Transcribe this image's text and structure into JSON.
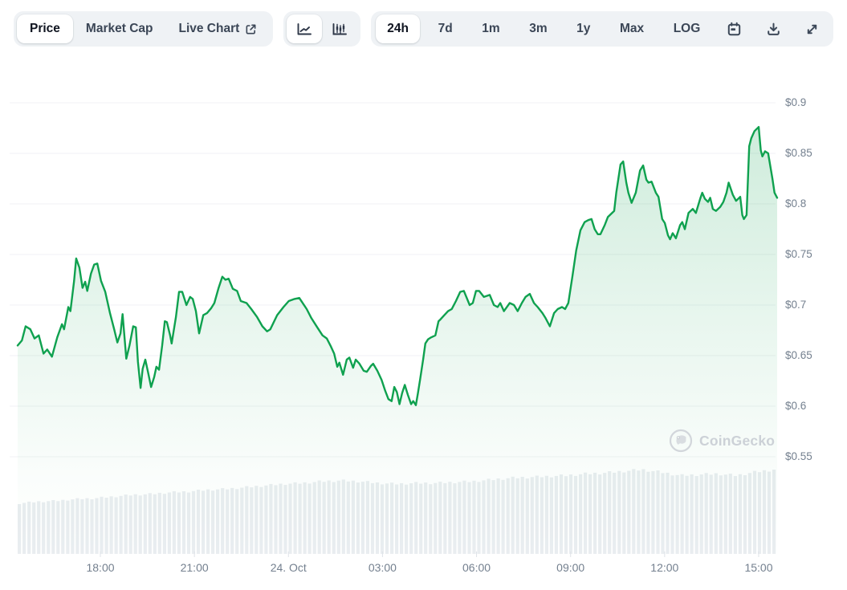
{
  "toolbar": {
    "view_tabs": [
      {
        "label": "Price",
        "active": true
      },
      {
        "label": "Market Cap",
        "active": false
      },
      {
        "label": "Live Chart",
        "active": false,
        "external_link": true
      }
    ],
    "chart_types": [
      {
        "name": "line-chart",
        "active": true
      },
      {
        "name": "candlestick-chart",
        "active": false
      }
    ],
    "ranges": [
      {
        "label": "24h",
        "active": true
      },
      {
        "label": "7d",
        "active": false
      },
      {
        "label": "1m",
        "active": false
      },
      {
        "label": "3m",
        "active": false
      },
      {
        "label": "1y",
        "active": false
      },
      {
        "label": "Max",
        "active": false
      },
      {
        "label": "LOG",
        "active": false
      }
    ],
    "icon_buttons": [
      {
        "name": "calendar-icon"
      },
      {
        "name": "download-icon"
      },
      {
        "name": "fullscreen-icon"
      }
    ]
  },
  "watermark": {
    "label": "CoinGecko"
  },
  "colors": {
    "line_green": "#0fa14f",
    "fill_green": "#0fa14f",
    "axis_text": "#74808f",
    "grid": "#f0f2f4",
    "volume_bar": "#e9edf0",
    "toolbar_bg": "#eff2f5"
  },
  "chart_data": {
    "type": "line",
    "title": "24h price chart (USD)",
    "x_axis": {
      "labels": [
        "18:00",
        "21:00",
        "24. Oct",
        "03:00",
        "06:00",
        "09:00",
        "12:00",
        "15:00"
      ],
      "tick_interval": "3h",
      "span_minutes": 1440
    },
    "y_axis": {
      "labels": [
        "$0.9",
        "$0.85",
        "$0.8",
        "$0.75",
        "$0.7",
        "$0.65",
        "$0.6",
        "$0.55"
      ],
      "min": 0.55,
      "max": 0.9,
      "grid_step": 0.05,
      "unit": "$"
    },
    "series": [
      {
        "name": "Price",
        "unit": "USD",
        "points": [
          [
            0,
            0.66
          ],
          [
            8,
            0.665
          ],
          [
            15,
            0.679
          ],
          [
            24,
            0.676
          ],
          [
            32,
            0.667
          ],
          [
            40,
            0.67
          ],
          [
            49,
            0.652
          ],
          [
            56,
            0.656
          ],
          [
            65,
            0.649
          ],
          [
            75,
            0.668
          ],
          [
            84,
            0.681
          ],
          [
            88,
            0.676
          ],
          [
            96,
            0.698
          ],
          [
            100,
            0.694
          ],
          [
            107,
            0.724
          ],
          [
            111,
            0.746
          ],
          [
            117,
            0.737
          ],
          [
            123,
            0.717
          ],
          [
            128,
            0.723
          ],
          [
            132,
            0.714
          ],
          [
            139,
            0.731
          ],
          [
            145,
            0.74
          ],
          [
            151,
            0.741
          ],
          [
            158,
            0.724
          ],
          [
            166,
            0.713
          ],
          [
            175,
            0.692
          ],
          [
            183,
            0.676
          ],
          [
            189,
            0.663
          ],
          [
            195,
            0.672
          ],
          [
            199,
            0.691
          ],
          [
            206,
            0.647
          ],
          [
            212,
            0.66
          ],
          [
            219,
            0.679
          ],
          [
            224,
            0.678
          ],
          [
            228,
            0.644
          ],
          [
            233,
            0.618
          ],
          [
            237,
            0.637
          ],
          [
            242,
            0.646
          ],
          [
            247,
            0.634
          ],
          [
            253,
            0.619
          ],
          [
            259,
            0.629
          ],
          [
            263,
            0.639
          ],
          [
            268,
            0.636
          ],
          [
            274,
            0.66
          ],
          [
            279,
            0.684
          ],
          [
            283,
            0.683
          ],
          [
            289,
            0.67
          ],
          [
            292,
            0.662
          ],
          [
            300,
            0.688
          ],
          [
            306,
            0.713
          ],
          [
            312,
            0.713
          ],
          [
            320,
            0.7
          ],
          [
            327,
            0.708
          ],
          [
            332,
            0.706
          ],
          [
            338,
            0.694
          ],
          [
            344,
            0.672
          ],
          [
            352,
            0.69
          ],
          [
            359,
            0.692
          ],
          [
            367,
            0.697
          ],
          [
            373,
            0.702
          ],
          [
            381,
            0.717
          ],
          [
            388,
            0.728
          ],
          [
            394,
            0.725
          ],
          [
            400,
            0.726
          ],
          [
            408,
            0.716
          ],
          [
            416,
            0.714
          ],
          [
            423,
            0.704
          ],
          [
            434,
            0.702
          ],
          [
            443,
            0.696
          ],
          [
            454,
            0.688
          ],
          [
            464,
            0.679
          ],
          [
            473,
            0.674
          ],
          [
            479,
            0.676
          ],
          [
            492,
            0.69
          ],
          [
            504,
            0.698
          ],
          [
            514,
            0.704
          ],
          [
            525,
            0.706
          ],
          [
            534,
            0.707
          ],
          [
            548,
            0.696
          ],
          [
            557,
            0.687
          ],
          [
            568,
            0.678
          ],
          [
            578,
            0.67
          ],
          [
            586,
            0.667
          ],
          [
            594,
            0.659
          ],
          [
            600,
            0.652
          ],
          [
            606,
            0.639
          ],
          [
            610,
            0.643
          ],
          [
            617,
            0.631
          ],
          [
            624,
            0.646
          ],
          [
            629,
            0.648
          ],
          [
            636,
            0.638
          ],
          [
            641,
            0.646
          ],
          [
            648,
            0.642
          ],
          [
            656,
            0.635
          ],
          [
            662,
            0.634
          ],
          [
            670,
            0.64
          ],
          [
            674,
            0.642
          ],
          [
            682,
            0.635
          ],
          [
            690,
            0.626
          ],
          [
            697,
            0.615
          ],
          [
            703,
            0.607
          ],
          [
            709,
            0.605
          ],
          [
            714,
            0.619
          ],
          [
            719,
            0.614
          ],
          [
            724,
            0.602
          ],
          [
            729,
            0.613
          ],
          [
            734,
            0.621
          ],
          [
            740,
            0.611
          ],
          [
            746,
            0.602
          ],
          [
            750,
            0.605
          ],
          [
            755,
            0.601
          ],
          [
            759,
            0.613
          ],
          [
            763,
            0.626
          ],
          [
            769,
            0.647
          ],
          [
            773,
            0.662
          ],
          [
            778,
            0.666
          ],
          [
            784,
            0.668
          ],
          [
            792,
            0.67
          ],
          [
            798,
            0.684
          ],
          [
            802,
            0.686
          ],
          [
            807,
            0.689
          ],
          [
            816,
            0.694
          ],
          [
            823,
            0.696
          ],
          [
            831,
            0.704
          ],
          [
            839,
            0.713
          ],
          [
            846,
            0.714
          ],
          [
            857,
            0.7
          ],
          [
            863,
            0.702
          ],
          [
            869,
            0.714
          ],
          [
            875,
            0.714
          ],
          [
            884,
            0.708
          ],
          [
            895,
            0.71
          ],
          [
            903,
            0.7
          ],
          [
            910,
            0.698
          ],
          [
            915,
            0.702
          ],
          [
            922,
            0.694
          ],
          [
            933,
            0.702
          ],
          [
            941,
            0.7
          ],
          [
            948,
            0.694
          ],
          [
            956,
            0.702
          ],
          [
            963,
            0.708
          ],
          [
            971,
            0.711
          ],
          [
            979,
            0.702
          ],
          [
            986,
            0.698
          ],
          [
            995,
            0.692
          ],
          [
            1001,
            0.687
          ],
          [
            1009,
            0.679
          ],
          [
            1017,
            0.692
          ],
          [
            1024,
            0.696
          ],
          [
            1032,
            0.698
          ],
          [
            1038,
            0.696
          ],
          [
            1044,
            0.702
          ],
          [
            1052,
            0.729
          ],
          [
            1059,
            0.754
          ],
          [
            1067,
            0.774
          ],
          [
            1075,
            0.782
          ],
          [
            1082,
            0.784
          ],
          [
            1088,
            0.785
          ],
          [
            1094,
            0.775
          ],
          [
            1100,
            0.77
          ],
          [
            1105,
            0.77
          ],
          [
            1113,
            0.779
          ],
          [
            1119,
            0.787
          ],
          [
            1123,
            0.789
          ],
          [
            1131,
            0.793
          ],
          [
            1135,
            0.811
          ],
          [
            1143,
            0.839
          ],
          [
            1148,
            0.842
          ],
          [
            1154,
            0.821
          ],
          [
            1158,
            0.811
          ],
          [
            1164,
            0.801
          ],
          [
            1172,
            0.811
          ],
          [
            1180,
            0.833
          ],
          [
            1186,
            0.838
          ],
          [
            1192,
            0.824
          ],
          [
            1196,
            0.821
          ],
          [
            1202,
            0.822
          ],
          [
            1210,
            0.811
          ],
          [
            1215,
            0.807
          ],
          [
            1222,
            0.785
          ],
          [
            1227,
            0.781
          ],
          [
            1233,
            0.769
          ],
          [
            1237,
            0.765
          ],
          [
            1242,
            0.771
          ],
          [
            1248,
            0.766
          ],
          [
            1256,
            0.779
          ],
          [
            1260,
            0.782
          ],
          [
            1265,
            0.775
          ],
          [
            1272,
            0.791
          ],
          [
            1280,
            0.795
          ],
          [
            1286,
            0.791
          ],
          [
            1294,
            0.805
          ],
          [
            1298,
            0.811
          ],
          [
            1303,
            0.805
          ],
          [
            1309,
            0.802
          ],
          [
            1313,
            0.806
          ],
          [
            1318,
            0.795
          ],
          [
            1324,
            0.793
          ],
          [
            1332,
            0.797
          ],
          [
            1338,
            0.802
          ],
          [
            1344,
            0.811
          ],
          [
            1348,
            0.821
          ],
          [
            1356,
            0.809
          ],
          [
            1362,
            0.803
          ],
          [
            1370,
            0.807
          ],
          [
            1374,
            0.789
          ],
          [
            1377,
            0.785
          ],
          [
            1382,
            0.789
          ],
          [
            1387,
            0.857
          ],
          [
            1391,
            0.865
          ],
          [
            1397,
            0.872
          ],
          [
            1405,
            0.876
          ],
          [
            1409,
            0.853
          ],
          [
            1412,
            0.847
          ],
          [
            1417,
            0.852
          ],
          [
            1423,
            0.85
          ],
          [
            1431,
            0.825
          ],
          [
            1435,
            0.811
          ],
          [
            1440,
            0.806
          ]
        ]
      }
    ],
    "volume": {
      "name": "volume",
      "relative_values": [
        0.6,
        0.62,
        0.63,
        0.65,
        0.66,
        0.68,
        0.7,
        0.71,
        0.73,
        0.74,
        0.76,
        0.77,
        0.79,
        0.81,
        0.83,
        0.84,
        0.86,
        0.87,
        0.86,
        0.84,
        0.83,
        0.84,
        0.84,
        0.85,
        0.86,
        0.88,
        0.9,
        0.91,
        0.92,
        0.93,
        0.95,
        0.96,
        0.98,
        1.0,
        0.97,
        0.93,
        0.94,
        0.95,
        0.93,
        0.97,
        1.0
      ]
    },
    "legend": {
      "visible": false
    }
  }
}
